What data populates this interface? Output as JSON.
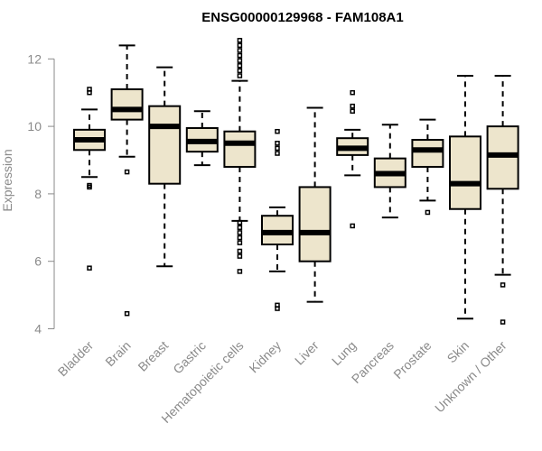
{
  "chart_data": {
    "type": "boxplot",
    "title": "ENSG00000129968 - FAM108A1",
    "xlabel": "",
    "ylabel": "Expression",
    "ylim": [
      4,
      12.7
    ],
    "yticks": [
      4,
      6,
      8,
      10,
      12
    ],
    "grid": false,
    "box_color": "#ede5cc",
    "categories": [
      "Bladder",
      "Brain",
      "Breast",
      "Gastric",
      "Hematopoietic cells",
      "Kidney",
      "Liver",
      "Lung",
      "Pancreas",
      "Prostate",
      "Skin",
      "Unknown / Other"
    ],
    "boxes": [
      {
        "name": "Bladder",
        "whislo": 8.5,
        "q1": 9.3,
        "med": 9.6,
        "q3": 9.9,
        "whishi": 10.5,
        "fliers": [
          11.1,
          11.0,
          8.25,
          8.2,
          5.8
        ]
      },
      {
        "name": "Brain",
        "whislo": 9.1,
        "q1": 10.2,
        "med": 10.5,
        "q3": 11.1,
        "whishi": 12.4,
        "fliers": [
          8.65,
          4.45
        ]
      },
      {
        "name": "Breast",
        "whislo": 5.85,
        "q1": 8.3,
        "med": 10.0,
        "q3": 10.6,
        "whishi": 11.75,
        "fliers": []
      },
      {
        "name": "Gastric",
        "whislo": 8.85,
        "q1": 9.25,
        "med": 9.55,
        "q3": 9.95,
        "whishi": 10.45,
        "fliers": []
      },
      {
        "name": "Hematopoietic cells",
        "whislo": 7.2,
        "q1": 8.8,
        "med": 9.5,
        "q3": 9.85,
        "whishi": 11.35,
        "fliers": [
          12.55,
          12.4,
          12.25,
          12.1,
          11.95,
          11.8,
          11.65,
          11.5,
          7.15,
          7.0,
          6.85,
          6.7,
          6.55,
          6.3,
          6.15,
          5.7
        ]
      },
      {
        "name": "Kidney",
        "whislo": 5.7,
        "q1": 6.5,
        "med": 6.85,
        "q3": 7.35,
        "whishi": 7.6,
        "fliers": [
          9.85,
          9.5,
          9.35,
          9.2,
          4.7,
          4.6
        ]
      },
      {
        "name": "Liver",
        "whislo": 4.8,
        "q1": 6.0,
        "med": 6.85,
        "q3": 8.2,
        "whishi": 10.55,
        "fliers": []
      },
      {
        "name": "Lung",
        "whislo": 8.55,
        "q1": 9.15,
        "med": 9.35,
        "q3": 9.65,
        "whishi": 9.9,
        "fliers": [
          11.0,
          10.6,
          10.45,
          7.05
        ]
      },
      {
        "name": "Pancreas",
        "whislo": 7.3,
        "q1": 8.2,
        "med": 8.6,
        "q3": 9.05,
        "whishi": 10.05,
        "fliers": []
      },
      {
        "name": "Prostate",
        "whislo": 7.8,
        "q1": 8.8,
        "med": 9.3,
        "q3": 9.6,
        "whishi": 10.2,
        "fliers": [
          7.45
        ]
      },
      {
        "name": "Skin",
        "whislo": 4.3,
        "q1": 7.55,
        "med": 8.3,
        "q3": 9.7,
        "whishi": 11.5,
        "fliers": []
      },
      {
        "name": "Unknown / Other",
        "whislo": 5.6,
        "q1": 8.15,
        "med": 9.15,
        "q3": 10.0,
        "whishi": 11.5,
        "fliers": [
          5.3,
          4.2
        ]
      }
    ]
  }
}
